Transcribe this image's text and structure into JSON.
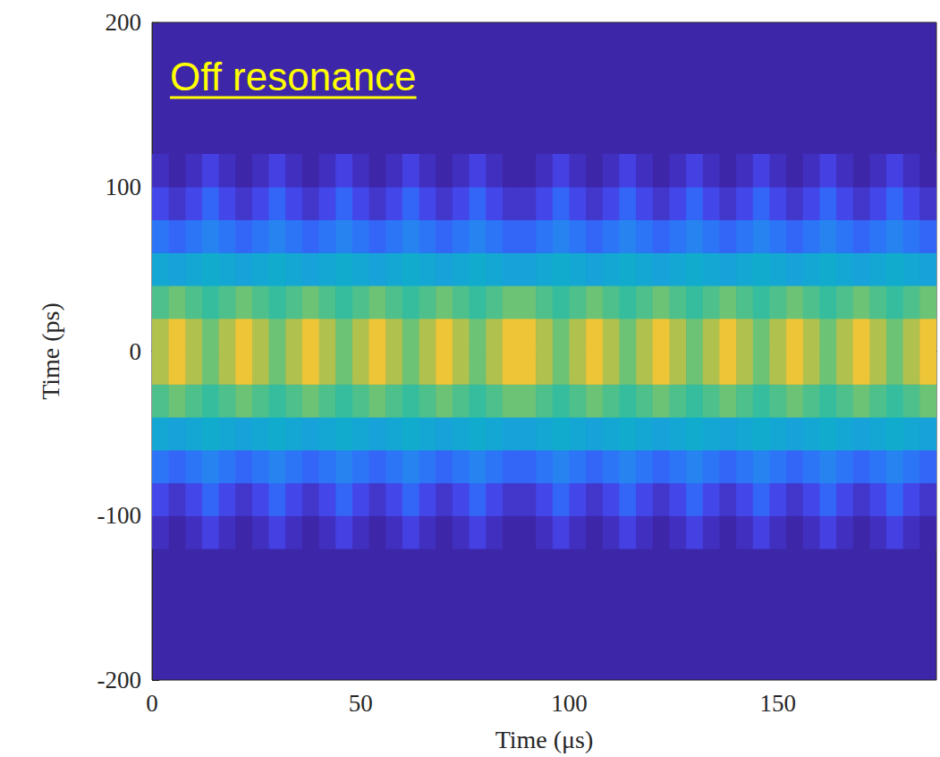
{
  "chart_data": {
    "type": "heatmap",
    "title": "Off resonance",
    "x_label": "Time (μs)",
    "y_label": "Time (ps)",
    "xlim": [
      0,
      188
    ],
    "xticks": [
      0,
      50,
      100,
      150
    ],
    "ylim": [
      -200,
      200
    ],
    "yticks": [
      -200,
      -100,
      0,
      100,
      200
    ],
    "zlim": [
      0,
      1
    ],
    "x_bins": [
      0,
      4,
      8,
      12,
      16,
      20,
      24,
      28,
      32,
      36,
      40,
      44,
      48,
      52,
      56,
      60,
      64,
      68,
      72,
      76,
      80,
      84,
      88,
      92,
      96,
      100,
      104,
      108,
      112,
      116,
      120,
      124,
      128,
      132,
      136,
      140,
      144,
      148,
      152,
      156,
      160,
      164,
      168,
      172,
      176,
      180,
      184,
      188
    ],
    "y_bins": [
      -120,
      -100,
      -80,
      -60,
      -40,
      -20,
      0,
      20,
      40,
      60,
      80,
      100,
      120
    ],
    "cells": [
      [
        0.04,
        0,
        0.04,
        0.1,
        0.04,
        0,
        0.04,
        0.1,
        0.04,
        0,
        0.04,
        0.1,
        0.04,
        0,
        0.04,
        0.1,
        0.04,
        0,
        0.04,
        0.1,
        0.04,
        0,
        0,
        0.04,
        0.1,
        0.04,
        0,
        0.04,
        0.1,
        0.04,
        0,
        0.04,
        0.1,
        0.04,
        0,
        0.04,
        0.1,
        0.04,
        0,
        0.04,
        0.1,
        0.04,
        0,
        0.04,
        0.1,
        0.04,
        0
      ],
      [
        0.12,
        0.06,
        0.12,
        0.2,
        0.12,
        0.06,
        0.12,
        0.2,
        0.12,
        0.06,
        0.12,
        0.2,
        0.12,
        0.06,
        0.12,
        0.2,
        0.12,
        0.06,
        0.12,
        0.2,
        0.12,
        0.06,
        0.06,
        0.12,
        0.2,
        0.12,
        0.06,
        0.12,
        0.2,
        0.12,
        0.06,
        0.12,
        0.2,
        0.12,
        0.06,
        0.12,
        0.2,
        0.12,
        0.06,
        0.12,
        0.2,
        0.12,
        0.06,
        0.12,
        0.2,
        0.12,
        0.06
      ],
      [
        0.24,
        0.2,
        0.24,
        0.28,
        0.24,
        0.2,
        0.24,
        0.28,
        0.24,
        0.2,
        0.24,
        0.28,
        0.24,
        0.2,
        0.24,
        0.28,
        0.24,
        0.2,
        0.24,
        0.28,
        0.24,
        0.2,
        0.2,
        0.24,
        0.28,
        0.24,
        0.2,
        0.24,
        0.28,
        0.24,
        0.2,
        0.24,
        0.28,
        0.24,
        0.2,
        0.24,
        0.28,
        0.24,
        0.2,
        0.24,
        0.28,
        0.24,
        0.2,
        0.24,
        0.28,
        0.24,
        0.2
      ],
      [
        0.4,
        0.38,
        0.4,
        0.42,
        0.4,
        0.38,
        0.4,
        0.42,
        0.4,
        0.38,
        0.4,
        0.42,
        0.4,
        0.38,
        0.4,
        0.42,
        0.4,
        0.38,
        0.4,
        0.42,
        0.4,
        0.38,
        0.38,
        0.4,
        0.42,
        0.4,
        0.38,
        0.4,
        0.42,
        0.4,
        0.38,
        0.4,
        0.42,
        0.4,
        0.38,
        0.4,
        0.42,
        0.4,
        0.38,
        0.4,
        0.42,
        0.4,
        0.38,
        0.4,
        0.42,
        0.4,
        0.38
      ],
      [
        0.58,
        0.62,
        0.58,
        0.54,
        0.58,
        0.62,
        0.58,
        0.54,
        0.58,
        0.62,
        0.58,
        0.54,
        0.58,
        0.62,
        0.58,
        0.54,
        0.58,
        0.62,
        0.58,
        0.54,
        0.58,
        0.62,
        0.62,
        0.58,
        0.54,
        0.58,
        0.62,
        0.58,
        0.54,
        0.58,
        0.62,
        0.58,
        0.54,
        0.58,
        0.62,
        0.58,
        0.54,
        0.58,
        0.62,
        0.58,
        0.54,
        0.58,
        0.62,
        0.58,
        0.54,
        0.58,
        0.62
      ],
      [
        0.72,
        0.85,
        0.72,
        0.62,
        0.72,
        0.85,
        0.72,
        0.62,
        0.72,
        0.85,
        0.72,
        0.62,
        0.72,
        0.85,
        0.72,
        0.62,
        0.72,
        0.85,
        0.72,
        0.62,
        0.72,
        0.85,
        0.85,
        0.72,
        0.62,
        0.72,
        0.85,
        0.72,
        0.62,
        0.72,
        0.85,
        0.72,
        0.62,
        0.72,
        0.85,
        0.72,
        0.62,
        0.72,
        0.85,
        0.72,
        0.62,
        0.72,
        0.85,
        0.72,
        0.62,
        0.72,
        0.85
      ],
      [
        0.72,
        0.85,
        0.72,
        0.62,
        0.72,
        0.85,
        0.72,
        0.62,
        0.72,
        0.85,
        0.72,
        0.62,
        0.72,
        0.85,
        0.72,
        0.62,
        0.72,
        0.85,
        0.72,
        0.62,
        0.72,
        0.85,
        0.85,
        0.72,
        0.62,
        0.72,
        0.85,
        0.72,
        0.62,
        0.72,
        0.85,
        0.72,
        0.62,
        0.72,
        0.85,
        0.72,
        0.62,
        0.72,
        0.85,
        0.72,
        0.62,
        0.72,
        0.85,
        0.72,
        0.62,
        0.72,
        0.85
      ],
      [
        0.58,
        0.62,
        0.58,
        0.54,
        0.58,
        0.62,
        0.58,
        0.54,
        0.58,
        0.62,
        0.58,
        0.54,
        0.58,
        0.62,
        0.58,
        0.54,
        0.58,
        0.62,
        0.58,
        0.54,
        0.58,
        0.62,
        0.62,
        0.58,
        0.54,
        0.58,
        0.62,
        0.58,
        0.54,
        0.58,
        0.62,
        0.58,
        0.54,
        0.58,
        0.62,
        0.58,
        0.54,
        0.58,
        0.62,
        0.58,
        0.54,
        0.58,
        0.62,
        0.58,
        0.54,
        0.58,
        0.62
      ],
      [
        0.4,
        0.38,
        0.4,
        0.42,
        0.4,
        0.38,
        0.4,
        0.42,
        0.4,
        0.38,
        0.4,
        0.42,
        0.4,
        0.38,
        0.4,
        0.42,
        0.4,
        0.38,
        0.4,
        0.42,
        0.4,
        0.38,
        0.38,
        0.4,
        0.42,
        0.4,
        0.38,
        0.4,
        0.42,
        0.4,
        0.38,
        0.4,
        0.42,
        0.4,
        0.38,
        0.4,
        0.42,
        0.4,
        0.38,
        0.4,
        0.42,
        0.4,
        0.38,
        0.4,
        0.42,
        0.4,
        0.38
      ],
      [
        0.24,
        0.2,
        0.24,
        0.28,
        0.24,
        0.2,
        0.24,
        0.28,
        0.24,
        0.2,
        0.24,
        0.28,
        0.24,
        0.2,
        0.24,
        0.28,
        0.24,
        0.2,
        0.24,
        0.28,
        0.24,
        0.2,
        0.2,
        0.24,
        0.28,
        0.24,
        0.2,
        0.24,
        0.28,
        0.24,
        0.2,
        0.24,
        0.28,
        0.24,
        0.2,
        0.24,
        0.28,
        0.24,
        0.2,
        0.24,
        0.28,
        0.24,
        0.2,
        0.24,
        0.28,
        0.24,
        0.2
      ],
      [
        0.12,
        0.06,
        0.12,
        0.2,
        0.12,
        0.06,
        0.12,
        0.2,
        0.12,
        0.06,
        0.12,
        0.2,
        0.12,
        0.06,
        0.12,
        0.2,
        0.12,
        0.06,
        0.12,
        0.2,
        0.12,
        0.06,
        0.06,
        0.12,
        0.2,
        0.12,
        0.06,
        0.12,
        0.2,
        0.12,
        0.06,
        0.12,
        0.2,
        0.12,
        0.06,
        0.12,
        0.2,
        0.12,
        0.06,
        0.12,
        0.2,
        0.12,
        0.06,
        0.12,
        0.2,
        0.12,
        0.06
      ],
      [
        0.04,
        0,
        0.04,
        0.1,
        0.04,
        0,
        0.04,
        0.1,
        0.04,
        0,
        0.04,
        0.1,
        0.04,
        0,
        0.04,
        0.1,
        0.04,
        0,
        0.04,
        0.1,
        0.04,
        0,
        0,
        0.04,
        0.1,
        0.04,
        0,
        0.04,
        0.1,
        0.04,
        0,
        0.04,
        0.1,
        0.04,
        0,
        0.04,
        0.1,
        0.04,
        0,
        0.04,
        0.1,
        0.04,
        0,
        0.04,
        0.1,
        0.04,
        0
      ]
    ],
    "grid": false,
    "tick_labels": true
  }
}
